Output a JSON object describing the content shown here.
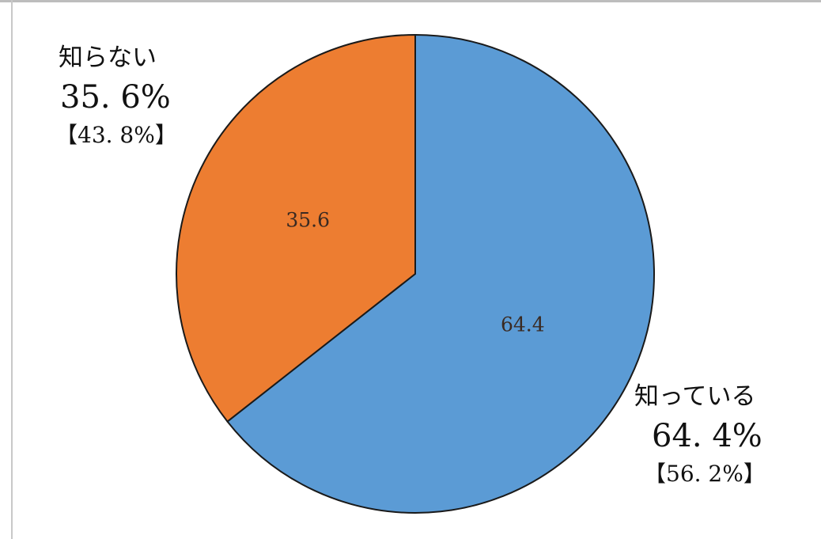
{
  "chart_data": {
    "type": "pie",
    "slices": [
      {
        "label": "知っている",
        "value": 64.4,
        "value_label": "64.4",
        "color": "#5b9bd5",
        "callout_percent": "64. 4%",
        "callout_previous": "【56. 2%】"
      },
      {
        "label": "知らない",
        "value": 35.6,
        "value_label": "35.6",
        "color": "#ed7d31",
        "callout_percent": "35. 6%",
        "callout_previous": "【43. 8%】"
      }
    ],
    "start_angle": "12 o'clock",
    "direction": "clockwise",
    "slice_outline_color": "#1a1a1a"
  }
}
